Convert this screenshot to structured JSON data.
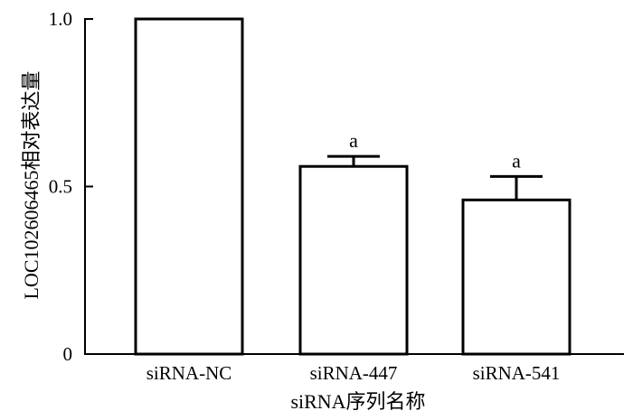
{
  "chart_data": {
    "type": "bar",
    "categories": [
      "siRNA-NC",
      "siRNA-447",
      "siRNA-541"
    ],
    "values": [
      1.0,
      0.56,
      0.46
    ],
    "errors": [
      0,
      0.03,
      0.07
    ],
    "significance": [
      "",
      "a",
      "a"
    ],
    "xlabel": "siRNA序列名称",
    "ylabel": "LOC102606465相对表达量",
    "ylim": [
      0,
      1.0
    ],
    "yticks": [
      0,
      0.5,
      1.0
    ],
    "ytick_labels": [
      "0",
      "0.5",
      "1.0"
    ],
    "grid": false,
    "legend": "none",
    "colors": {
      "bar_fill": "#ffffff",
      "stroke": "#000000"
    }
  }
}
